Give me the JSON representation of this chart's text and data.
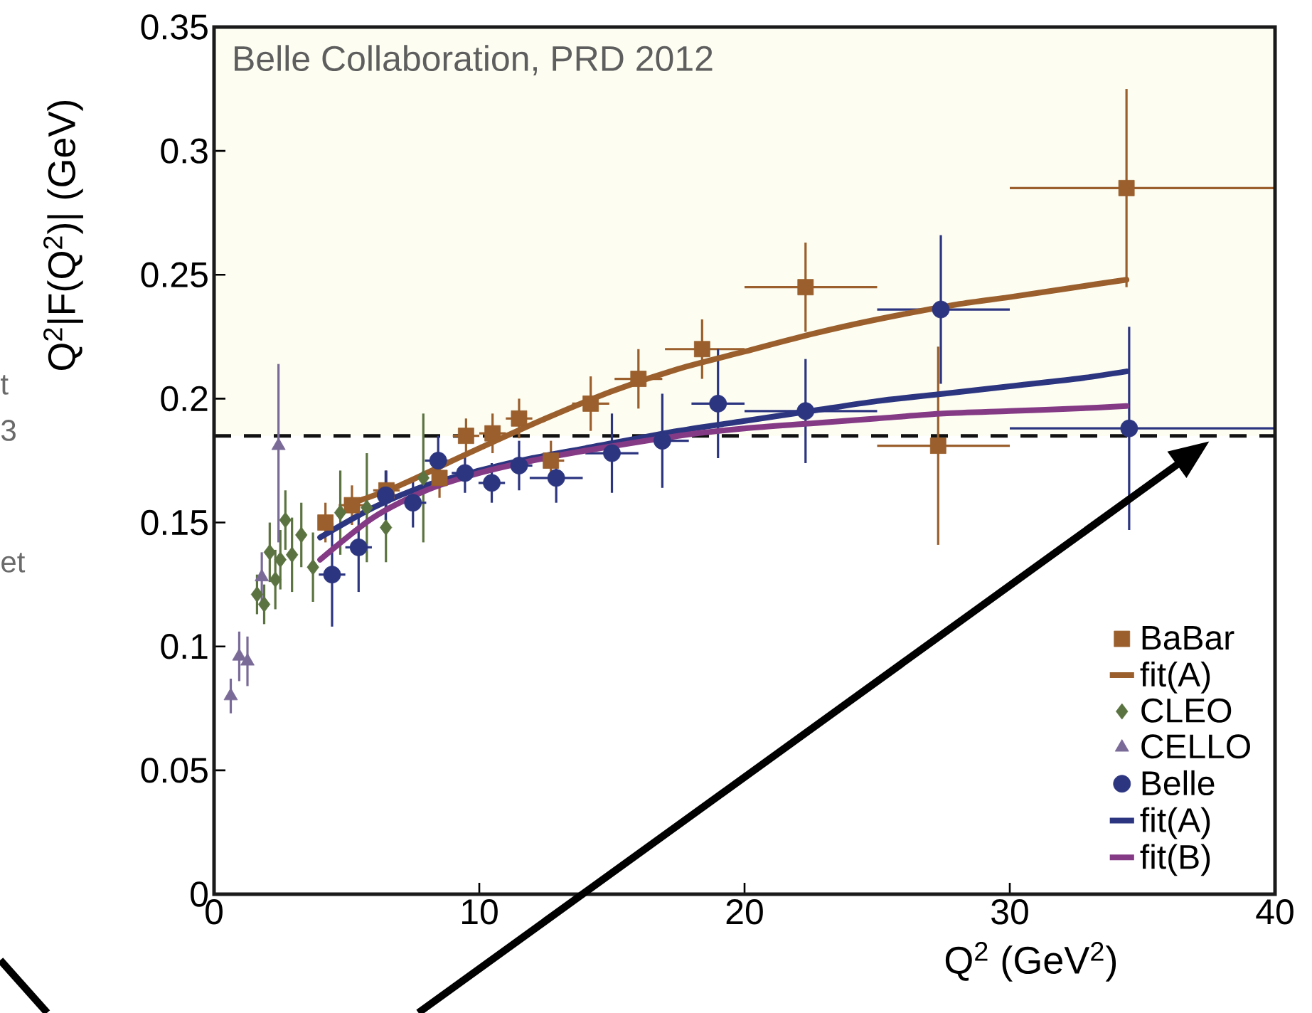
{
  "chart_data": {
    "type": "scatter",
    "xlabel": "Q$^{2}$ (GeV$^{2}$)",
    "ylabel": "Q$^{2}$|F(Q$^{2}$)| (GeV)",
    "annotations": [
      "Belle Collaboration, PRD 2012",
      "t",
      "3",
      "et"
    ],
    "xlim": [
      0,
      40
    ],
    "ylim": [
      0,
      0.35
    ],
    "xticks": [
      0,
      10,
      20,
      30,
      40
    ],
    "yticks": [
      0,
      0.05,
      0.1,
      0.15,
      0.2,
      0.25,
      0.3,
      0.35
    ],
    "grid": false,
    "legend": "bottom right",
    "ref_lines": [
      {
        "axis": "y",
        "value": 0.185,
        "color": "#111111",
        "line_style": "dashed"
      }
    ],
    "bands": [
      {
        "axis": "y",
        "from": 0.185,
        "to": 0.35,
        "color": "#fdfdf2"
      }
    ],
    "series": [
      {
        "name": "BaBar",
        "marker": "square",
        "color": "#9a5f2c",
        "x": [
          4.2,
          5.2,
          6.5,
          8.5,
          9.5,
          10.5,
          11.5,
          12.7,
          14.2,
          16.0,
          18.4,
          22.3,
          27.3,
          34.4
        ],
        "values": [
          0.15,
          0.157,
          0.163,
          0.168,
          0.185,
          0.186,
          0.192,
          0.175,
          0.198,
          0.208,
          0.22,
          0.245,
          0.181,
          0.285
        ],
        "errors": [
          0.008,
          0.008,
          0.008,
          0.008,
          0.007,
          0.008,
          0.008,
          0.008,
          0.011,
          0.012,
          0.012,
          0.018,
          0.04,
          0.04
        ],
        "xerrors": [
          null,
          0.5,
          0.5,
          null,
          0.5,
          0.5,
          0.5,
          0.5,
          0.7,
          0.9,
          [
            17,
            20
          ],
          [
            20,
            25
          ],
          [
            25,
            30
          ],
          [
            30,
            40
          ]
        ]
      },
      {
        "name": "fit(A)",
        "type": "line",
        "line_style": "solid",
        "color": "#9a5f2c",
        "x": [
          5,
          7,
          9,
          10,
          12.5,
          15,
          17.5,
          20,
          22.5,
          25,
          28,
          30,
          32.5,
          34.4
        ],
        "values": [
          0.157,
          0.165,
          0.175,
          0.18,
          0.192,
          0.203,
          0.212,
          0.219,
          0.226,
          0.232,
          0.238,
          0.241,
          0.245,
          0.248
        ]
      },
      {
        "name": "CLEO",
        "marker": "diamond",
        "color": "#5b7340",
        "x": [
          1.62,
          1.89,
          2.1,
          2.31,
          2.5,
          2.69,
          2.94,
          3.29,
          3.73,
          4.76,
          5.76,
          6.48,
          7.89
        ],
        "values": [
          0.121,
          0.117,
          0.138,
          0.127,
          0.135,
          0.151,
          0.137,
          0.145,
          0.132,
          0.154,
          0.156,
          0.148,
          0.168
        ],
        "errors": [
          0.008,
          0.008,
          0.012,
          0.012,
          0.012,
          0.012,
          0.015,
          0.013,
          0.014,
          0.017,
          0.022,
          0.014,
          0.026
        ]
      },
      {
        "name": "CELLO",
        "marker": "triangle",
        "color": "#7a6a98",
        "x": [
          0.63,
          0.95,
          1.26,
          1.8,
          2.43
        ],
        "values": [
          0.08,
          0.096,
          0.094,
          0.128,
          0.181
        ],
        "errors": [
          0.007,
          0.01,
          0.01,
          0.01,
          [
            0.142,
            0.214
          ]
        ]
      },
      {
        "name": "Belle",
        "marker": "circle",
        "color": "#2c3580",
        "x": [
          4.45,
          5.45,
          6.47,
          7.5,
          8.45,
          9.46,
          10.47,
          11.5,
          12.9,
          15.0,
          16.9,
          19.0,
          22.3,
          27.4,
          34.5
        ],
        "values": [
          0.129,
          0.14,
          0.161,
          0.158,
          0.175,
          0.17,
          0.166,
          0.173,
          0.168,
          0.178,
          0.183,
          0.198,
          0.195,
          0.236,
          0.188
        ],
        "errors": [
          0.021,
          0.018,
          0.01,
          0.01,
          0.01,
          0.008,
          0.008,
          0.01,
          0.01,
          0.016,
          0.019,
          0.022,
          0.021,
          0.03,
          0.041
        ],
        "xerrors": [
          0.5,
          0.5,
          0.5,
          0.5,
          0.5,
          0.5,
          0.5,
          0.5,
          1.0,
          1.0,
          1.0,
          1.0,
          [
            20,
            25
          ],
          [
            25,
            30
          ],
          [
            30,
            40
          ]
        ]
      },
      {
        "name": "fit(A)",
        "type": "line",
        "line_style": "solid",
        "color": "#2c3580",
        "x": [
          4,
          6,
          8,
          10,
          12,
          14,
          17.5,
          20,
          22.5,
          25,
          27.5,
          30,
          32.5,
          34.4
        ],
        "values": [
          0.144,
          0.156,
          0.165,
          0.171,
          0.176,
          0.18,
          0.187,
          0.191,
          0.195,
          0.199,
          0.202,
          0.205,
          0.208,
          0.211
        ]
      },
      {
        "name": "fit(B)",
        "type": "line",
        "line_style": "solid",
        "color": "#843a85",
        "x": [
          4,
          6,
          8,
          10,
          12,
          14,
          17.5,
          20,
          22.5,
          25,
          27.5,
          30,
          32.5,
          34.4
        ],
        "values": [
          0.135,
          0.152,
          0.163,
          0.17,
          0.175,
          0.179,
          0.185,
          0.188,
          0.19,
          0.192,
          0.194,
          0.195,
          0.196,
          0.197
        ]
      }
    ]
  }
}
